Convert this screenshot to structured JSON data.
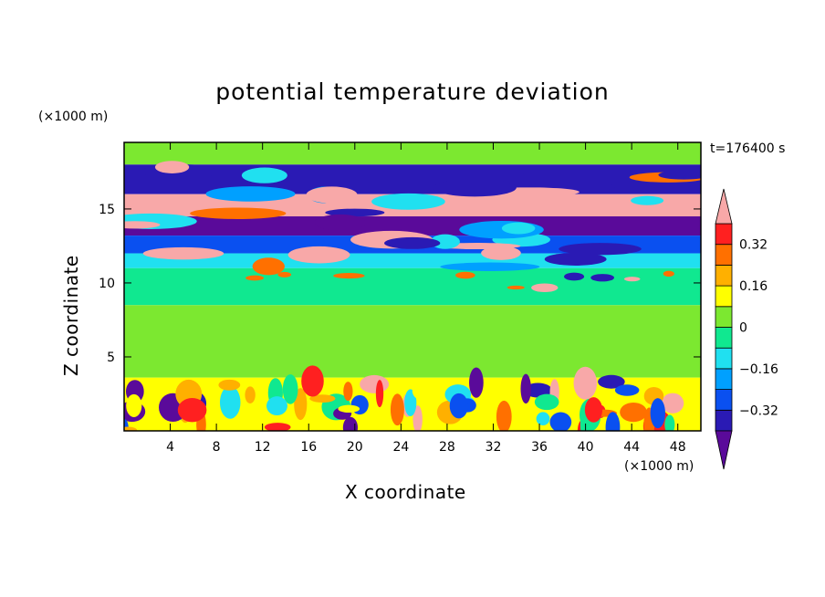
{
  "chart_data": {
    "type": "heatmap",
    "title": "potential temperature deviation",
    "xlabel": "X coordinate",
    "ylabel": "Z coordinate",
    "x_unit": "(×1000 m)",
    "z_unit": "(×1000 m)",
    "time_label": "t=176400 s",
    "xlim": [
      0,
      50
    ],
    "ylim": [
      0,
      19.5
    ],
    "x_ticks": [
      4,
      8,
      12,
      16,
      20,
      24,
      28,
      32,
      36,
      40,
      44,
      48
    ],
    "x_tick_labels": [
      "4",
      "8",
      "12",
      "16",
      "20",
      "24",
      "28",
      "32",
      "36",
      "40",
      "44",
      "48"
    ],
    "y_ticks": [
      5,
      10,
      15
    ],
    "y_tick_labels": [
      "5",
      "10",
      "15"
    ],
    "colorbar": {
      "levels": [
        -0.4,
        -0.32,
        -0.24,
        -0.16,
        -0.08,
        0,
        0.08,
        0.16,
        0.24,
        0.32,
        0.4
      ],
      "tick_values": [
        0.32,
        0.16,
        0,
        -0.16,
        -0.32
      ],
      "tick_labels": [
        "0.32",
        "0.16",
        "0",
        "−0.16",
        "−0.32"
      ],
      "colors": [
        "#5a0a9a",
        "#2a1ab4",
        "#0a50f0",
        "#00a0ff",
        "#20e0f0",
        "#10e890",
        "#7ce830",
        "#ffff00",
        "#ffb000",
        "#ff7000",
        "#ff2020",
        "#f8a8a8"
      ]
    },
    "bands": [
      {
        "zmin": 18.0,
        "zmax": 19.5,
        "level": 6
      },
      {
        "zmin": 16.0,
        "zmax": 18.0,
        "level": 1
      },
      {
        "zmin": 14.5,
        "zmax": 16.0,
        "level": 11
      },
      {
        "zmin": 13.2,
        "zmax": 14.5,
        "level": 0
      },
      {
        "zmin": 12.0,
        "zmax": 13.2,
        "level": 2
      },
      {
        "zmin": 11.0,
        "zmax": 12.0,
        "level": 4
      },
      {
        "zmin": 8.5,
        "zmax": 11.0,
        "level": 5
      },
      {
        "zmin": 3.6,
        "zmax": 8.5,
        "level": 6
      },
      {
        "zmin": 0.0,
        "zmax": 3.6,
        "level": 7
      }
    ]
  }
}
